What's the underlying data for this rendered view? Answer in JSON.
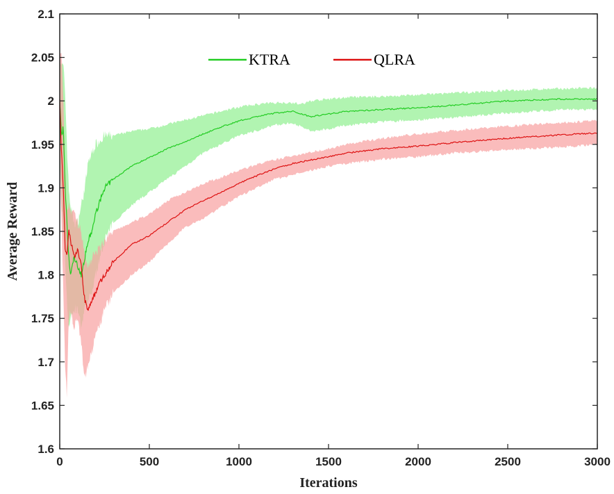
{
  "chart_data": {
    "type": "line",
    "title": "",
    "xlabel": "Iterations",
    "ylabel": "Average Reward",
    "xlim": [
      0,
      3000
    ],
    "ylim": [
      1.6,
      2.1
    ],
    "xticks": [
      "0",
      "500",
      "1000",
      "1500",
      "2000",
      "2500",
      "3000"
    ],
    "yticks": [
      "1.6",
      "1.65",
      "1.7",
      "1.75",
      "1.8",
      "1.85",
      "1.9",
      "1.95",
      "2",
      "2.05",
      "2.1"
    ],
    "grid": false,
    "legend_position": "top-center",
    "series": [
      {
        "name": "KTRA",
        "line_color": "#22cc22",
        "band_color": "#90f090",
        "x": [
          0,
          10,
          20,
          30,
          40,
          50,
          60,
          80,
          100,
          120,
          140,
          160,
          180,
          200,
          250,
          300,
          400,
          500,
          600,
          700,
          800,
          900,
          1000,
          1100,
          1200,
          1300,
          1350,
          1400,
          1500,
          1600,
          1800,
          2000,
          2200,
          2500,
          2800,
          3000
        ],
        "mean": [
          2.0,
          1.96,
          1.97,
          1.9,
          1.86,
          1.82,
          1.8,
          1.82,
          1.81,
          1.8,
          1.82,
          1.84,
          1.85,
          1.87,
          1.9,
          1.91,
          1.925,
          1.935,
          1.945,
          1.953,
          1.962,
          1.97,
          1.977,
          1.982,
          1.986,
          1.988,
          1.985,
          1.982,
          1.985,
          1.988,
          1.99,
          1.992,
          1.995,
          2.0,
          2.002,
          2.002
        ],
        "upper": [
          2.05,
          2.04,
          2.04,
          2.01,
          1.95,
          1.9,
          1.88,
          1.86,
          1.86,
          1.88,
          1.9,
          1.93,
          1.94,
          1.95,
          1.96,
          1.96,
          1.965,
          1.968,
          1.973,
          1.978,
          1.983,
          1.988,
          1.993,
          1.996,
          1.998,
          1.998,
          1.996,
          2.0,
          2.002,
          2.004,
          2.005,
          2.007,
          2.009,
          2.012,
          2.014,
          2.015
        ],
        "lower": [
          1.93,
          1.88,
          1.86,
          1.82,
          1.77,
          1.74,
          1.75,
          1.76,
          1.76,
          1.74,
          1.76,
          1.77,
          1.78,
          1.8,
          1.84,
          1.86,
          1.88,
          1.895,
          1.91,
          1.925,
          1.94,
          1.95,
          1.96,
          1.966,
          1.972,
          1.975,
          1.97,
          1.965,
          1.968,
          1.972,
          1.976,
          1.978,
          1.981,
          1.986,
          1.99,
          1.99
        ]
      },
      {
        "name": "QLRA",
        "line_color": "#dd1111",
        "band_color": "#f8a0a0",
        "x": [
          0,
          10,
          20,
          30,
          40,
          50,
          60,
          80,
          100,
          120,
          140,
          160,
          180,
          200,
          220,
          250,
          300,
          400,
          500,
          600,
          700,
          800,
          900,
          1000,
          1100,
          1200,
          1300,
          1400,
          1500,
          1600,
          1800,
          2000,
          2200,
          2500,
          2800,
          3000
        ],
        "mean": [
          2.0,
          1.94,
          1.9,
          1.83,
          1.82,
          1.85,
          1.84,
          1.82,
          1.83,
          1.81,
          1.77,
          1.76,
          1.77,
          1.78,
          1.79,
          1.8,
          1.815,
          1.835,
          1.845,
          1.86,
          1.875,
          1.885,
          1.895,
          1.905,
          1.914,
          1.922,
          1.928,
          1.932,
          1.936,
          1.94,
          1.945,
          1.948,
          1.952,
          1.957,
          1.961,
          1.963
        ],
        "upper": [
          2.05,
          2.05,
          2.0,
          1.92,
          1.88,
          1.88,
          1.87,
          1.87,
          1.86,
          1.85,
          1.82,
          1.81,
          1.82,
          1.825,
          1.83,
          1.84,
          1.85,
          1.86,
          1.87,
          1.885,
          1.895,
          1.905,
          1.912,
          1.92,
          1.927,
          1.932,
          1.937,
          1.941,
          1.945,
          1.95,
          1.957,
          1.962,
          1.966,
          1.971,
          1.975,
          1.977
        ],
        "lower": [
          1.95,
          1.86,
          1.78,
          1.7,
          1.66,
          1.75,
          1.76,
          1.74,
          1.75,
          1.72,
          1.68,
          1.7,
          1.71,
          1.73,
          1.74,
          1.76,
          1.78,
          1.8,
          1.815,
          1.835,
          1.855,
          1.865,
          1.878,
          1.89,
          1.9,
          1.91,
          1.915,
          1.92,
          1.925,
          1.928,
          1.933,
          1.936,
          1.94,
          1.944,
          1.947,
          1.95
        ]
      }
    ]
  }
}
